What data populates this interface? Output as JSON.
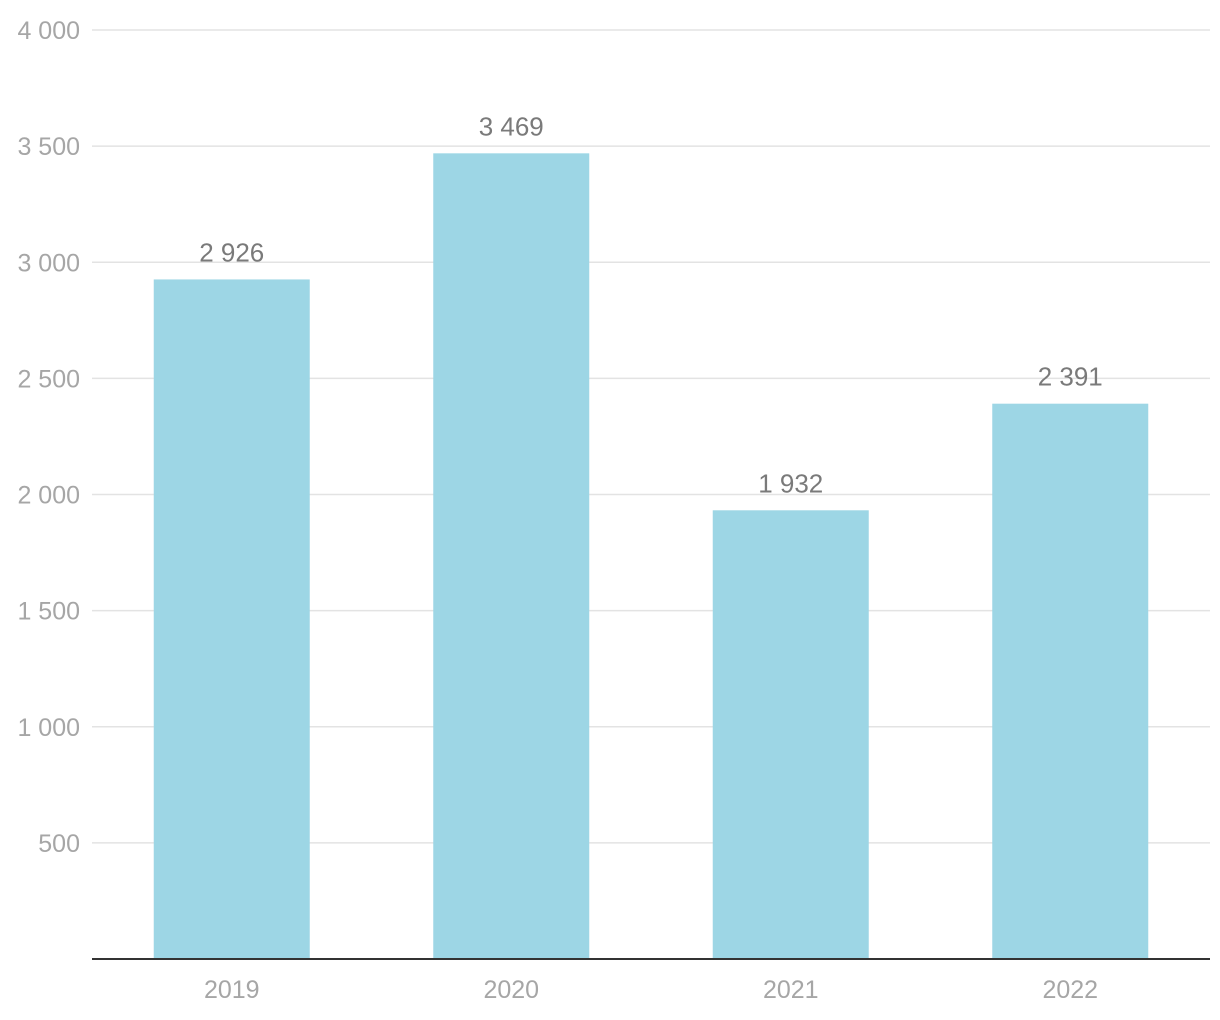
{
  "chart_data": {
    "type": "bar",
    "categories": [
      "2019",
      "2020",
      "2021",
      "2022"
    ],
    "values": [
      2926,
      3469,
      1932,
      2391
    ],
    "value_labels": [
      "2 926",
      "3 469",
      "1 932",
      "2 391"
    ],
    "yticks": [
      500,
      1000,
      1500,
      2000,
      2500,
      3000,
      3500,
      4000
    ],
    "ytick_labels": [
      "500",
      "1 000",
      "1 500",
      "2 000",
      "2 500",
      "3 000",
      "3 500",
      "4 000"
    ],
    "ylim": [
      0,
      4000
    ],
    "title": "",
    "xlabel": "",
    "ylabel": "",
    "grid": true,
    "legend": "none",
    "colors": {
      "bar": "#9dd6e5",
      "grid": "#e3e3e3",
      "axis": "#333333",
      "tick_text": "#a6a6a6",
      "label_text": "#7a7a7a"
    }
  }
}
